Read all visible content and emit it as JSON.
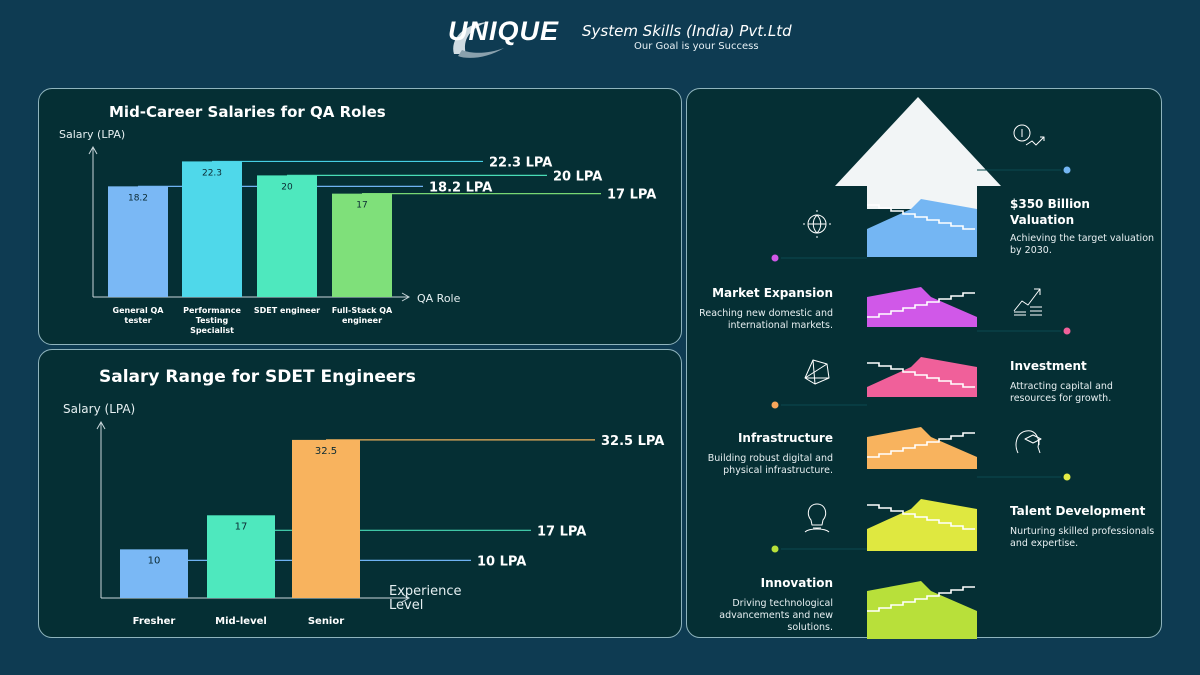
{
  "brand": {
    "wordmark": "UNIQUE",
    "company": "System Skills (India) Pvt.Ltd",
    "tagline": "Our Goal is your Success"
  },
  "chart_data": [
    {
      "type": "bar",
      "title": "Mid-Career Salaries for QA  Roles",
      "xlabel": "QA Role",
      "ylabel": "Salary (LPA)",
      "categories": [
        [
          "General QA",
          "tester"
        ],
        [
          "Performance",
          "Testing",
          "Specialist"
        ],
        [
          "SDET engineer"
        ],
        [
          "Full-Stack QA",
          "engineer"
        ]
      ],
      "values": [
        18.2,
        22.3,
        20,
        17
      ],
      "value_labels": [
        "18.2",
        "22.3",
        "20",
        "17"
      ],
      "callouts": [
        "18.2 LPA",
        "22.3 LPA",
        "20 LPA",
        "17 LPA"
      ],
      "ylim": [
        0,
        25
      ],
      "colors": [
        "#7ab8f5",
        "#4fd8ea",
        "#4ee8be",
        "#7fe07a"
      ],
      "line_colors": [
        "#6fb2f2",
        "#47cfe3",
        "#49dcb6",
        "#78d873"
      ],
      "grid": false,
      "legend": "none"
    },
    {
      "type": "bar",
      "title": "Salary Range for SDET  Engineers",
      "xlabel": "Experience Level",
      "ylabel": "Salary (LPA)",
      "categories": [
        [
          "Fresher"
        ],
        [
          "Mid-level"
        ],
        [
          "Senior"
        ]
      ],
      "values": [
        10,
        17,
        32.5
      ],
      "value_labels": [
        "10",
        "17",
        "32.5"
      ],
      "callouts": [
        "10 LPA",
        "17 LPA",
        "32.5 LPA"
      ],
      "ylim": [
        0,
        37
      ],
      "colors": [
        "#7ab8f5",
        "#4ee8be",
        "#f8b35e"
      ],
      "line_colors": [
        "#6fb2f2",
        "#49dcb6",
        "#f0b05a"
      ],
      "grid": false,
      "legend": "none"
    }
  ],
  "growth": {
    "arrow_colors": [
      "#b8e03a",
      "#dfe840",
      "#f8b35e",
      "#f0609a",
      "#d058e8",
      "#74b6f3"
    ],
    "milestones": [
      {
        "title": "Innovation",
        "desc": [
          "Driving technological",
          "advancements and new",
          "solutions."
        ],
        "side": "left",
        "dot": "#b8e03a",
        "icon": "lightbulb-icon"
      },
      {
        "title": "Talent Development",
        "desc": [
          "Nurturing skilled professionals",
          "and expertise."
        ],
        "side": "right",
        "dot": "#e4ec45",
        "icon": "brain-graduation-icon"
      },
      {
        "title": "Infrastructure",
        "desc": [
          "Building robust digital and",
          "physical infrastructure."
        ],
        "side": "left",
        "dot": "#f8a65a",
        "icon": "network-icon"
      },
      {
        "title": "Investment",
        "desc": [
          "Attracting capital and",
          "resources for growth."
        ],
        "side": "right",
        "dot": "#f0609a",
        "icon": "growth-coins-icon"
      },
      {
        "title": "Market Expansion",
        "desc": [
          "Reaching new domestic and",
          "international markets."
        ],
        "side": "left",
        "dot": "#d058e8",
        "icon": "globe-icon"
      },
      {
        "title": [
          "$350 Billion",
          "Valuation"
        ],
        "desc": [
          "Achieving the target valuation",
          "by 2030."
        ],
        "side": "right",
        "dot": "#74b6f3",
        "icon": "dollar-trend-icon"
      }
    ]
  }
}
